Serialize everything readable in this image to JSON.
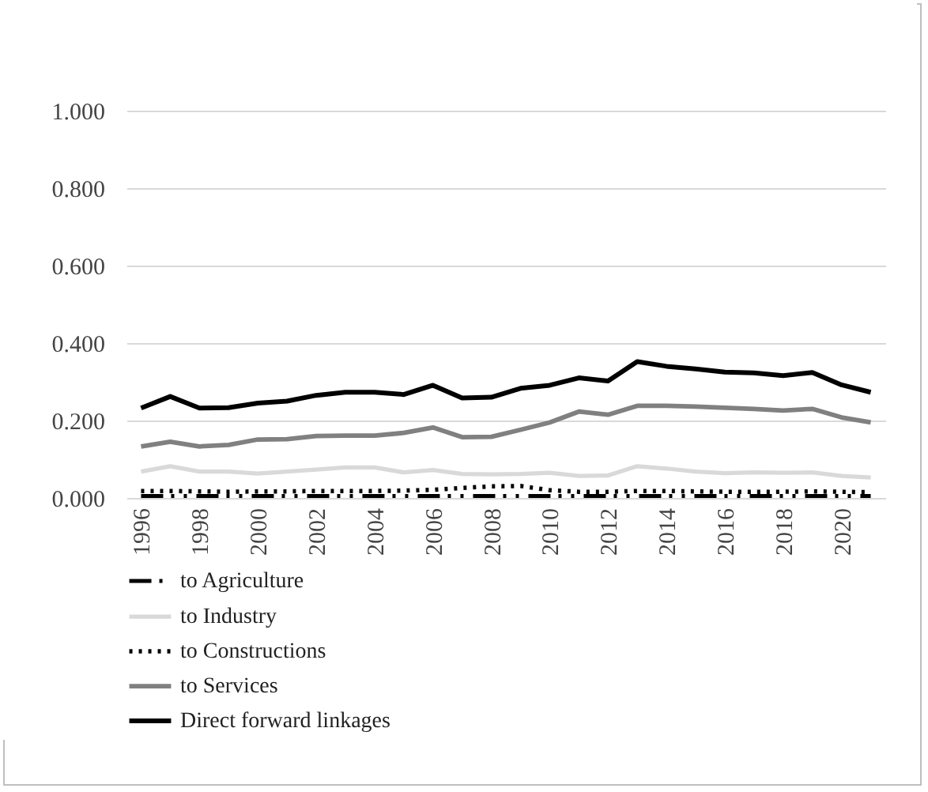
{
  "chart_data": {
    "type": "line",
    "x": [
      1996,
      1997,
      1998,
      1999,
      2000,
      2001,
      2002,
      2003,
      2004,
      2005,
      2006,
      2007,
      2008,
      2009,
      2010,
      2011,
      2012,
      2013,
      2014,
      2015,
      2016,
      2017,
      2018,
      2019,
      2020,
      2021
    ],
    "xlim": [
      1995.5,
      2021.5
    ],
    "xticks": [
      1996,
      1998,
      2000,
      2002,
      2004,
      2006,
      2008,
      2010,
      2012,
      2014,
      2016,
      2018,
      2020
    ],
    "ylim": [
      0,
      1
    ],
    "yticks": [
      {
        "value": 0,
        "label": "0.000"
      },
      {
        "value": 0.2,
        "label": "0.200"
      },
      {
        "value": 0.4,
        "label": "0.400"
      },
      {
        "value": 0.6,
        "label": "0.600"
      },
      {
        "value": 0.8,
        "label": "0.800"
      },
      {
        "value": 1,
        "label": "1.000"
      }
    ],
    "grid": "y",
    "legend": "bottom",
    "marker": "none",
    "series": [
      {
        "name": "to Agriculture",
        "color": "#000000",
        "line_style": "dashed",
        "values": [
          0.005,
          0.005,
          0.005,
          0.005,
          0.005,
          0.005,
          0.005,
          0.005,
          0.005,
          0.005,
          0.005,
          0.005,
          0.005,
          0.005,
          0.005,
          0.005,
          0.005,
          0.005,
          0.005,
          0.005,
          0.005,
          0.005,
          0.005,
          0.005,
          0.005,
          0.005
        ]
      },
      {
        "name": "to Industry",
        "color": "#d9d9d9",
        "line_style": "solid",
        "values": [
          0.068,
          0.082,
          0.068,
          0.068,
          0.063,
          0.068,
          0.073,
          0.079,
          0.079,
          0.066,
          0.072,
          0.062,
          0.061,
          0.062,
          0.065,
          0.057,
          0.058,
          0.082,
          0.076,
          0.068,
          0.064,
          0.066,
          0.065,
          0.066,
          0.057,
          0.053
        ]
      },
      {
        "name": "to Constructions",
        "color": "#000000",
        "line_style": "dotted",
        "values": [
          0.018,
          0.018,
          0.017,
          0.016,
          0.017,
          0.017,
          0.018,
          0.018,
          0.018,
          0.019,
          0.021,
          0.026,
          0.03,
          0.031,
          0.02,
          0.016,
          0.016,
          0.018,
          0.018,
          0.017,
          0.016,
          0.016,
          0.016,
          0.017,
          0.016,
          0.015
        ]
      },
      {
        "name": "to Services",
        "color": "#808080",
        "line_style": "solid",
        "values": [
          0.133,
          0.145,
          0.133,
          0.137,
          0.151,
          0.152,
          0.16,
          0.161,
          0.161,
          0.168,
          0.182,
          0.157,
          0.158,
          0.176,
          0.195,
          0.223,
          0.215,
          0.238,
          0.238,
          0.236,
          0.233,
          0.23,
          0.226,
          0.23,
          0.208,
          0.195
        ]
      },
      {
        "name": "Direct forward linkages",
        "color": "#000000",
        "line_style": "solid",
        "values": [
          0.232,
          0.262,
          0.232,
          0.233,
          0.245,
          0.25,
          0.265,
          0.273,
          0.273,
          0.267,
          0.291,
          0.258,
          0.26,
          0.283,
          0.291,
          0.31,
          0.302,
          0.352,
          0.34,
          0.333,
          0.325,
          0.323,
          0.316,
          0.324,
          0.292,
          0.273
        ]
      }
    ]
  }
}
